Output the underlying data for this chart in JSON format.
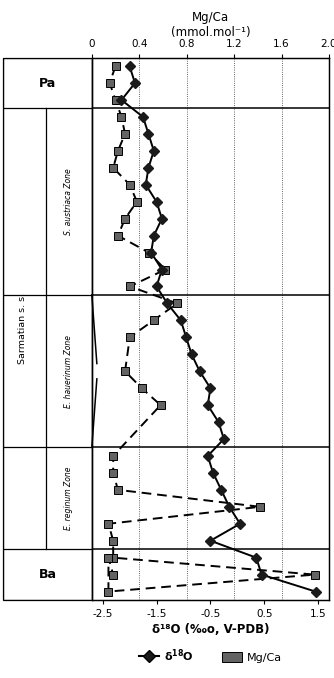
{
  "title_top": "Mg/Ca",
  "title_top2": "(mmol.mol⁻¹)",
  "xlabel": "δ¹⁸O (‰o, V-PDB)",
  "d18O_xlim": [
    -2.7,
    1.7
  ],
  "mgca_xlim": [
    0.0,
    2.0
  ],
  "d18O_ticks": [
    -2.5,
    -1.5,
    -0.5,
    0.5,
    1.5
  ],
  "mgca_ticks": [
    0,
    0.4,
    0.8,
    1.2,
    1.6,
    2.0
  ],
  "n_rows": 32,
  "d18O_data_x": [
    -2.0,
    -1.9,
    -2.15,
    -1.75,
    -1.65,
    -1.55,
    -1.65,
    -1.7,
    -1.5,
    -1.4,
    -1.55,
    -1.6,
    -1.4,
    -1.5,
    -1.3,
    -1.05,
    -0.95,
    -0.85,
    -0.7,
    -0.5,
    -0.55,
    -0.35,
    -0.25,
    -0.55,
    -0.45,
    -0.3,
    -0.15,
    0.05,
    -0.5,
    0.35,
    0.45,
    1.45
  ],
  "d18O_data_y": [
    1,
    2,
    3,
    4,
    5,
    6,
    7,
    8,
    9,
    10,
    11,
    12,
    13,
    14,
    15,
    16,
    17,
    18,
    19,
    20,
    21,
    22,
    23,
    24,
    25,
    26,
    27,
    28,
    29,
    30,
    31,
    32
  ],
  "mgca_data_x": [
    0.2,
    0.15,
    0.2,
    0.25,
    0.28,
    0.22,
    0.18,
    0.32,
    0.38,
    0.28,
    0.22,
    0.48,
    0.62,
    0.32,
    0.72,
    0.52,
    0.32,
    0.28,
    0.42,
    0.58,
    0.18,
    0.18,
    0.22,
    1.42,
    0.14,
    0.18,
    0.18,
    1.88,
    0.14,
    0.14,
    0.18
  ],
  "mgca_data_y": [
    1,
    2,
    3,
    4,
    5,
    6,
    7,
    8,
    9,
    10,
    11,
    12,
    13,
    14,
    15,
    16,
    17,
    19,
    20,
    21,
    24,
    25,
    26,
    27,
    28,
    29,
    30,
    31,
    32,
    30,
    31
  ],
  "zone_row_boundaries": [
    0,
    3,
    14,
    23,
    29,
    32
  ],
  "background_color": "#ffffff",
  "line_color": "#000000",
  "square_color": "#636363",
  "diamond_color": "#1a1a1a"
}
